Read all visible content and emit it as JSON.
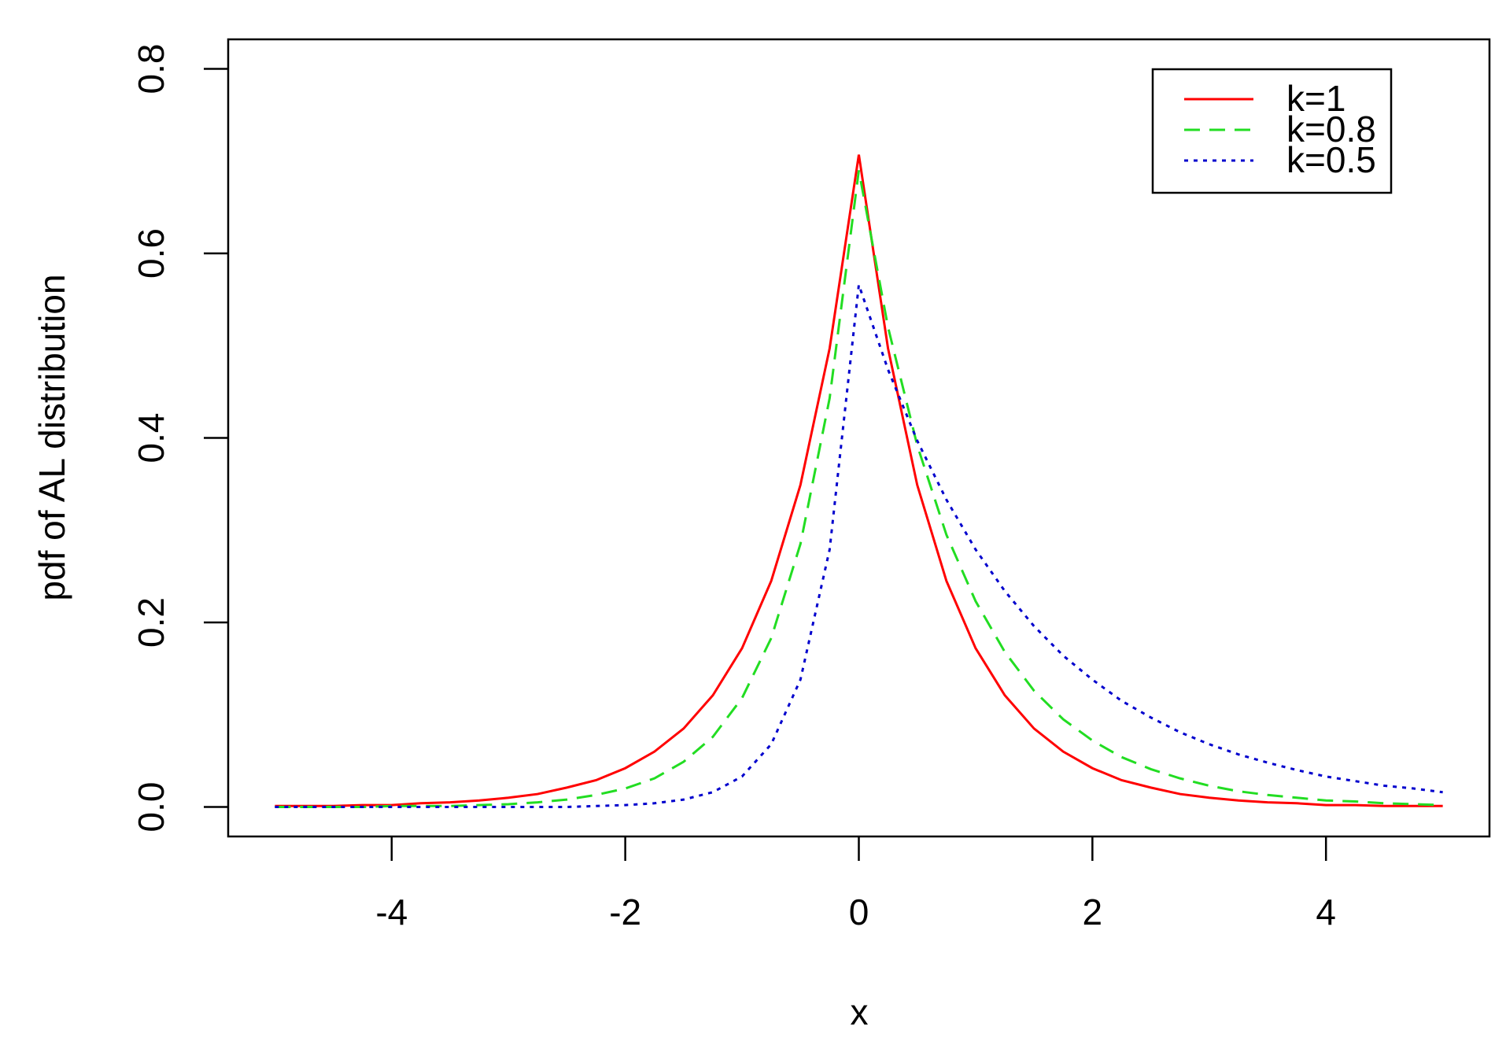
{
  "chart_data": {
    "type": "line",
    "xlabel": "x",
    "ylabel": "pdf of AL distribution",
    "x": [
      -5,
      -4.75,
      -4.5,
      -4.25,
      -4,
      -3.75,
      -3.5,
      -3.25,
      -3,
      -2.75,
      -2.5,
      -2.25,
      -2,
      -1.75,
      -1.5,
      -1.25,
      -1,
      -0.75,
      -0.5,
      -0.25,
      0,
      0.25,
      0.5,
      0.75,
      1,
      1.25,
      1.5,
      1.75,
      2,
      2.25,
      2.5,
      2.75,
      3,
      3.25,
      3.5,
      3.75,
      4,
      4.25,
      4.5,
      4.75,
      5
    ],
    "series": [
      {
        "name": "k=1",
        "color": "#ff0000",
        "linestyle": "solid",
        "values": [
          0.001,
          0.001,
          0.001,
          0.002,
          0.002,
          0.004,
          0.005,
          0.007,
          0.01,
          0.014,
          0.021,
          0.029,
          0.042,
          0.06,
          0.085,
          0.121,
          0.172,
          0.245,
          0.349,
          0.497,
          0.707,
          0.497,
          0.349,
          0.245,
          0.172,
          0.121,
          0.085,
          0.06,
          0.042,
          0.029,
          0.021,
          0.014,
          0.01,
          0.007,
          0.005,
          0.004,
          0.002,
          0.002,
          0.001,
          0.001,
          0.001
        ]
      },
      {
        "name": "k=0.8",
        "color": "#22dd22",
        "linestyle": "dashed",
        "values": [
          0,
          0,
          0,
          0,
          0.001,
          0.001,
          0.001,
          0.002,
          0.003,
          0.005,
          0.008,
          0.013,
          0.02,
          0.031,
          0.049,
          0.076,
          0.118,
          0.183,
          0.285,
          0.443,
          0.69,
          0.52,
          0.392,
          0.295,
          0.223,
          0.168,
          0.126,
          0.095,
          0.072,
          0.054,
          0.041,
          0.031,
          0.023,
          0.017,
          0.013,
          0.01,
          0.007,
          0.006,
          0.004,
          0.003,
          0.002
        ]
      },
      {
        "name": "k=0.5",
        "color": "#0000cd",
        "linestyle": "dotted",
        "values": [
          0,
          0,
          0,
          0,
          0,
          0,
          0,
          0,
          0,
          0,
          0,
          0.001,
          0.002,
          0.004,
          0.008,
          0.016,
          0.033,
          0.068,
          0.138,
          0.279,
          0.566,
          0.474,
          0.397,
          0.333,
          0.279,
          0.234,
          0.196,
          0.164,
          0.138,
          0.115,
          0.097,
          0.081,
          0.068,
          0.057,
          0.048,
          0.04,
          0.033,
          0.028,
          0.023,
          0.02,
          0.016
        ]
      }
    ],
    "xlim": [
      -5.4,
      5.4
    ],
    "xticks": [
      -4,
      -2,
      0,
      2,
      4
    ],
    "ylim": [
      -0.032,
      0.832
    ],
    "yticks": [
      {
        "value": 0,
        "label": "0.0"
      },
      0.2,
      0.4,
      0.6,
      0.8
    ],
    "legend": "top-right",
    "grid": false
  }
}
